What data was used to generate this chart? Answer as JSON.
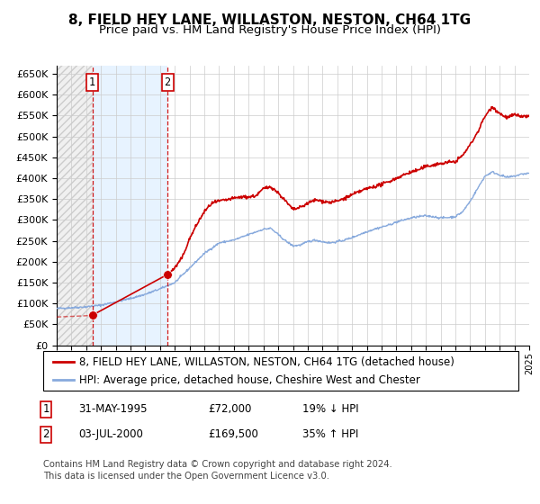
{
  "title": "8, FIELD HEY LANE, WILLASTON, NESTON, CH64 1TG",
  "subtitle": "Price paid vs. HM Land Registry's House Price Index (HPI)",
  "ylim": [
    0,
    670000
  ],
  "yticks": [
    0,
    50000,
    100000,
    150000,
    200000,
    250000,
    300000,
    350000,
    400000,
    450000,
    500000,
    550000,
    600000,
    650000
  ],
  "xlim_start": 1993,
  "xlim_end": 2025,
  "sale1_date": 1995.42,
  "sale1_price": 72000,
  "sale2_date": 2000.5,
  "sale2_price": 169500,
  "hpi_line_color": "#88aadd",
  "price_line_color": "#cc0000",
  "sale_marker_color": "#cc0000",
  "dashed_line_color": "#cc0000",
  "grid_color": "#cccccc",
  "hatch_color": "#cccccc",
  "shade_color": "#ddeeff",
  "legend_label_price": "8, FIELD HEY LANE, WILLASTON, NESTON, CH64 1TG (detached house)",
  "legend_label_hpi": "HPI: Average price, detached house, Cheshire West and Chester",
  "table_rows": [
    {
      "num": "1",
      "date": "31-MAY-1995",
      "price": "£72,000",
      "hpi": "19% ↓ HPI"
    },
    {
      "num": "2",
      "date": "03-JUL-2000",
      "price": "£169,500",
      "hpi": "35% ↑ HPI"
    }
  ],
  "footnote1": "Contains HM Land Registry data © Crown copyright and database right 2024.",
  "footnote2": "This data is licensed under the Open Government Licence v3.0.",
  "hpi_keypoints": [
    [
      1993.0,
      88000
    ],
    [
      1994.0,
      90000
    ],
    [
      1995.0,
      92000
    ],
    [
      1996.0,
      96000
    ],
    [
      1997.0,
      104000
    ],
    [
      1998.0,
      112000
    ],
    [
      1999.0,
      122000
    ],
    [
      2000.0,
      135000
    ],
    [
      2001.0,
      150000
    ],
    [
      2002.0,
      185000
    ],
    [
      2003.0,
      220000
    ],
    [
      2004.0,
      245000
    ],
    [
      2005.0,
      252000
    ],
    [
      2006.0,
      265000
    ],
    [
      2007.0,
      278000
    ],
    [
      2007.5,
      280000
    ],
    [
      2008.0,
      265000
    ],
    [
      2008.5,
      250000
    ],
    [
      2009.0,
      238000
    ],
    [
      2009.5,
      240000
    ],
    [
      2010.0,
      248000
    ],
    [
      2010.5,
      252000
    ],
    [
      2011.0,
      248000
    ],
    [
      2011.5,
      245000
    ],
    [
      2012.0,
      248000
    ],
    [
      2012.5,
      252000
    ],
    [
      2013.0,
      258000
    ],
    [
      2013.5,
      265000
    ],
    [
      2014.0,
      272000
    ],
    [
      2014.5,
      278000
    ],
    [
      2015.0,
      283000
    ],
    [
      2015.5,
      288000
    ],
    [
      2016.0,
      295000
    ],
    [
      2016.5,
      300000
    ],
    [
      2017.0,
      305000
    ],
    [
      2017.5,
      308000
    ],
    [
      2018.0,
      310000
    ],
    [
      2018.5,
      308000
    ],
    [
      2019.0,
      305000
    ],
    [
      2019.5,
      306000
    ],
    [
      2020.0,
      308000
    ],
    [
      2020.5,
      320000
    ],
    [
      2021.0,
      345000
    ],
    [
      2021.5,
      375000
    ],
    [
      2022.0,
      405000
    ],
    [
      2022.5,
      415000
    ],
    [
      2023.0,
      408000
    ],
    [
      2023.5,
      402000
    ],
    [
      2024.0,
      405000
    ],
    [
      2024.5,
      410000
    ],
    [
      2025.0,
      412000
    ]
  ],
  "price_keypoints_after_s2": [
    [
      2000.5,
      169500
    ],
    [
      2001.0,
      185000
    ],
    [
      2001.5,
      210000
    ],
    [
      2002.0,
      255000
    ],
    [
      2002.5,
      290000
    ],
    [
      2003.0,
      320000
    ],
    [
      2003.5,
      340000
    ],
    [
      2004.0,
      345000
    ],
    [
      2004.5,
      348000
    ],
    [
      2005.0,
      352000
    ],
    [
      2005.5,
      355000
    ],
    [
      2006.0,
      355000
    ],
    [
      2006.5,
      358000
    ],
    [
      2007.0,
      375000
    ],
    [
      2007.5,
      380000
    ],
    [
      2008.0,
      365000
    ],
    [
      2008.5,
      345000
    ],
    [
      2009.0,
      325000
    ],
    [
      2009.5,
      330000
    ],
    [
      2010.0,
      340000
    ],
    [
      2010.5,
      348000
    ],
    [
      2011.0,
      345000
    ],
    [
      2011.5,
      342000
    ],
    [
      2012.0,
      345000
    ],
    [
      2012.5,
      352000
    ],
    [
      2013.0,
      360000
    ],
    [
      2013.5,
      368000
    ],
    [
      2014.0,
      375000
    ],
    [
      2014.5,
      380000
    ],
    [
      2015.0,
      385000
    ],
    [
      2015.5,
      392000
    ],
    [
      2016.0,
      400000
    ],
    [
      2016.5,
      408000
    ],
    [
      2017.0,
      415000
    ],
    [
      2017.5,
      420000
    ],
    [
      2018.0,
      428000
    ],
    [
      2018.5,
      432000
    ],
    [
      2019.0,
      435000
    ],
    [
      2019.5,
      438000
    ],
    [
      2020.0,
      440000
    ],
    [
      2020.5,
      455000
    ],
    [
      2021.0,
      480000
    ],
    [
      2021.5,
      510000
    ],
    [
      2022.0,
      548000
    ],
    [
      2022.5,
      572000
    ],
    [
      2023.0,
      555000
    ],
    [
      2023.5,
      545000
    ],
    [
      2024.0,
      552000
    ],
    [
      2024.5,
      548000
    ],
    [
      2025.0,
      548000
    ]
  ]
}
